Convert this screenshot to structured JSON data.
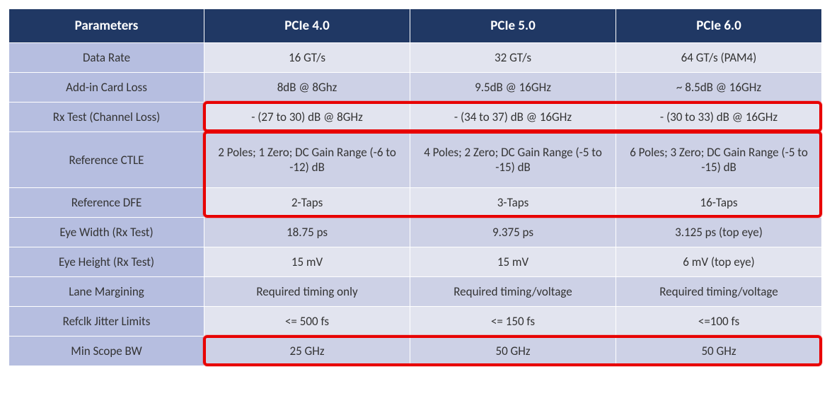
{
  "table": {
    "headers": [
      "Parameters",
      "PCIe 4.0",
      "PCIe 5.0",
      "PCIe 6.0"
    ],
    "rows": [
      {
        "param": "Data Rate",
        "v4": "16 GT/s",
        "v5": "32 GT/s",
        "v6": "64  GT/s (PAM4)"
      },
      {
        "param": "Add-in Card Loss",
        "v4": "8dB @ 8Ghz",
        "v5": "9.5dB @ 16GHz",
        "v6": "~ 8.5dB @ 16GHz"
      },
      {
        "param": "Rx Test (Channel Loss)",
        "v4": "- (27 to 30) dB @ 8GHz",
        "v5": "- (34 to 37) dB @ 16GHz",
        "v6": "- (30 to 33) dB @ 16GHz"
      },
      {
        "param": "Reference CTLE",
        "v4": "2 Poles; 1 Zero; DC Gain Range (-6 to -12) dB",
        "v5": "4 Poles; 2 Zero; DC Gain Range (-5 to -15) dB",
        "v6": "6 Poles; 3 Zero; DC Gain Range (-5 to -15) dB"
      },
      {
        "param": "Reference DFE",
        "v4": "2-Taps",
        "v5": "3-Taps",
        "v6": "16-Taps"
      },
      {
        "param": "Eye Width (Rx Test)",
        "v4": "18.75 ps",
        "v5": "9.375 ps",
        "v6": "3.125 ps (top eye)"
      },
      {
        "param": "Eye Height (Rx Test)",
        "v4": "15 mV",
        "v5": "15 mV",
        "v6": "6 mV (top eye)"
      },
      {
        "param": "Lane Margining",
        "v4": "Required timing only",
        "v5": "Required timing/voltage",
        "v6": "Required timing/voltage"
      },
      {
        "param": "Refclk Jitter Limits",
        "v4": "<= 500 fs",
        "v5": "<= 150 fs",
        "v6": "<=100 fs"
      },
      {
        "param": "Min Scope BW",
        "v4": "25 GHz",
        "v5": "50 GHz",
        "v6": "50 GHz"
      }
    ],
    "highlights": [
      {
        "rowStart": 2,
        "rowEnd": 2,
        "note": "Rx Test row value cells"
      },
      {
        "rowStart": 3,
        "rowEnd": 4,
        "note": "Reference CTLE + DFE value cells"
      },
      {
        "rowStart": 9,
        "rowEnd": 9,
        "note": "Min Scope BW value cells"
      }
    ],
    "colors": {
      "header_bg": "#203864",
      "header_fg": "#ffffff",
      "param_bg": "#b6bee0",
      "row_even_bg": "#e2e4ef",
      "row_odd_bg": "#cdd1e6",
      "border": "#ffffff",
      "highlight": "#e80000",
      "text": "#333333"
    },
    "font": {
      "family": "Calibri",
      "header_size_pt": 14,
      "cell_size_pt": 13
    }
  }
}
